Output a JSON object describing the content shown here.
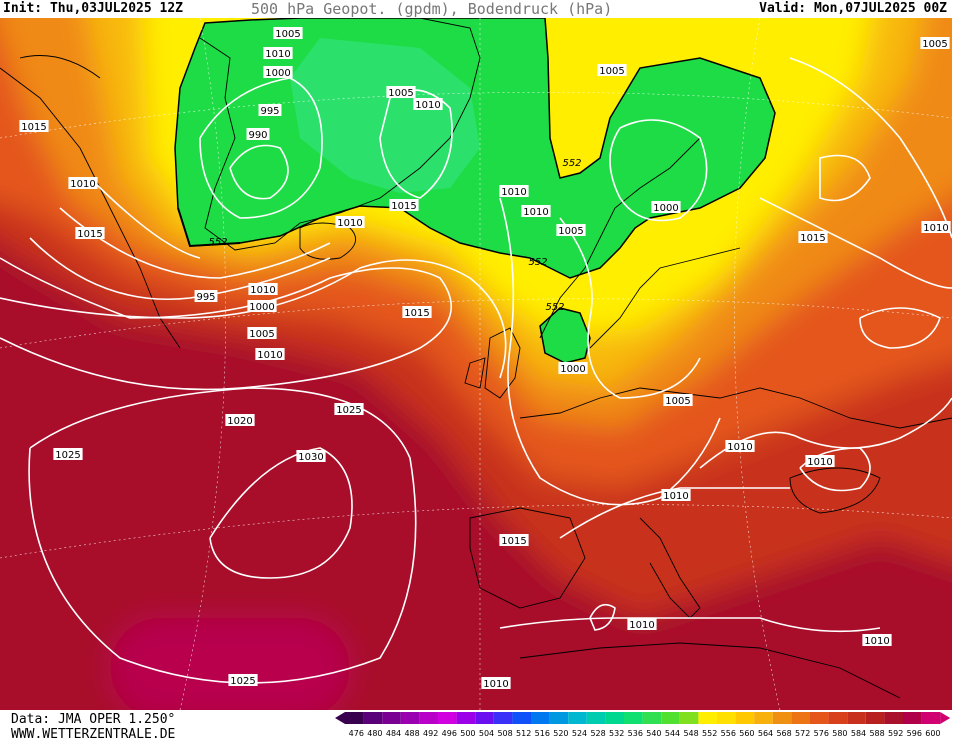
{
  "header": {
    "init": "Init: Thu,03JUL2025 12Z",
    "title": "500 hPa Geopot. (gpdm), Bodendruck (hPa)",
    "valid": "Valid: Mon,07JUL2025 00Z"
  },
  "footer": {
    "data_source": "Data: JMA OPER 1.250°",
    "website": "WWW.WETTERZENTRALE.DE"
  },
  "colors": {
    "deep_red": "#a8102b",
    "red": "#c8301e",
    "orange_red": "#e4561a",
    "orange": "#f08a12",
    "amber": "#f8b80c",
    "yellow": "#ffee00",
    "green": "#1edc46",
    "light_green": "#2ee86a",
    "magenta": "#b8004e",
    "isobar": "#ffffff",
    "coast": "#000000"
  },
  "scale": {
    "labels": [
      "476",
      "480",
      "484",
      "488",
      "492",
      "496",
      "500",
      "504",
      "508",
      "512",
      "516",
      "520",
      "524",
      "528",
      "532",
      "536",
      "540",
      "544",
      "548",
      "552",
      "556",
      "560",
      "564",
      "568",
      "572",
      "576",
      "580",
      "584",
      "588",
      "592",
      "596",
      "600"
    ],
    "colors": [
      "#3a0050",
      "#5a0078",
      "#7a0094",
      "#9a00b0",
      "#b800c8",
      "#d000e0",
      "#9c00e8",
      "#6a10f0",
      "#3a30f8",
      "#1050f8",
      "#0078f0",
      "#0098e0",
      "#00b8d0",
      "#00ccb0",
      "#00d890",
      "#10e070",
      "#30e050",
      "#50e030",
      "#80e020",
      "#ffee00",
      "#ffe000",
      "#ffc800",
      "#f8b00c",
      "#f09012",
      "#ec7414",
      "#e4561a",
      "#d8401c",
      "#c8301e",
      "#b8201f",
      "#a8102b",
      "#b0004a",
      "#d00070"
    ]
  },
  "pressure_labels": [
    {
      "text": "1005"
    },
    {
      "text": "1010"
    },
    {
      "text": "1000"
    },
    {
      "text": "995"
    },
    {
      "text": "990"
    },
    {
      "text": "1005"
    },
    {
      "text": "1010"
    },
    {
      "text": "1015"
    },
    {
      "text": "1010"
    },
    {
      "text": "1005"
    },
    {
      "text": "1010"
    },
    {
      "text": "1010"
    },
    {
      "text": "1005"
    },
    {
      "text": "1000"
    },
    {
      "text": "1015"
    },
    {
      "text": "1010"
    },
    {
      "text": "1015"
    },
    {
      "text": "1010"
    },
    {
      "text": "995"
    },
    {
      "text": "1000"
    },
    {
      "text": "1005"
    },
    {
      "text": "1010"
    },
    {
      "text": "1015"
    },
    {
      "text": "1000"
    },
    {
      "text": "1005"
    },
    {
      "text": "1020"
    },
    {
      "text": "1025"
    },
    {
      "text": "1025"
    },
    {
      "text": "1030"
    },
    {
      "text": "1010"
    },
    {
      "text": "1010"
    },
    {
      "text": "1015"
    },
    {
      "text": "1010"
    },
    {
      "text": "1010"
    },
    {
      "text": "1010"
    },
    {
      "text": "1025"
    },
    {
      "text": "1010"
    },
    {
      "text": "1015"
    },
    {
      "text": "1010"
    },
    {
      "text": "1005"
    }
  ],
  "geopot_labels": [
    {
      "text": "552"
    },
    {
      "text": "552"
    },
    {
      "text": "552"
    },
    {
      "text": "552"
    }
  ]
}
